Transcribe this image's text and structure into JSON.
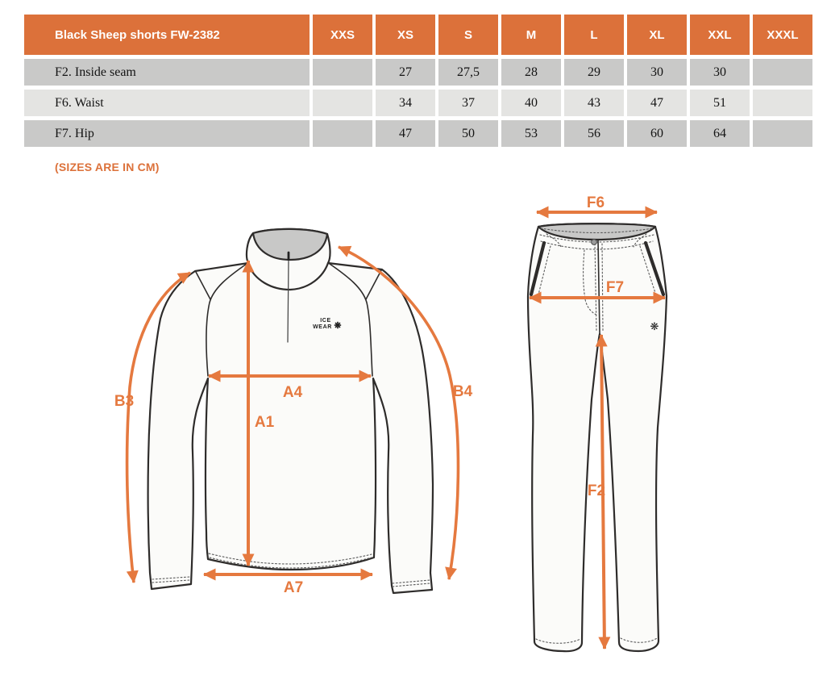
{
  "colors": {
    "accent_orange": "#DC713A",
    "arrow_orange": "#E5793F",
    "row_gray_dark": "#C9C9C8",
    "row_gray_light": "#E4E4E2",
    "garment_fill": "#FBFBF9",
    "garment_line": "#2E2C2B",
    "collar_fill": "#C8C8C7"
  },
  "size_table": {
    "product_label": "Black Sheep shorts FW-2382",
    "columns": [
      "XXS",
      "XS",
      "S",
      "M",
      "L",
      "XL",
      "XXL",
      "XXXL"
    ],
    "rows": [
      {
        "label": "F2. Inside seam",
        "values": [
          "",
          "27",
          "27,5",
          "28",
          "29",
          "30",
          "30",
          ""
        ]
      },
      {
        "label": "F6. Waist",
        "values": [
          "",
          "34",
          "37",
          "40",
          "43",
          "47",
          "51",
          ""
        ]
      },
      {
        "label": "F7. Hip",
        "values": [
          "",
          "47",
          "50",
          "53",
          "56",
          "60",
          "64",
          ""
        ]
      }
    ]
  },
  "units_note": "(SIZES ARE IN CM)",
  "diagram_labels": {
    "b3": "B3",
    "a4": "A4",
    "a1": "A1",
    "b4": "B4",
    "a7": "A7",
    "f6": "F6",
    "f7": "F7",
    "f2": "F2"
  },
  "shirt_logo": {
    "line1": "ICE",
    "line2": "WEAR"
  },
  "icons": {
    "shirt_snowflake": "❋",
    "pants_snowflake": "❋"
  }
}
